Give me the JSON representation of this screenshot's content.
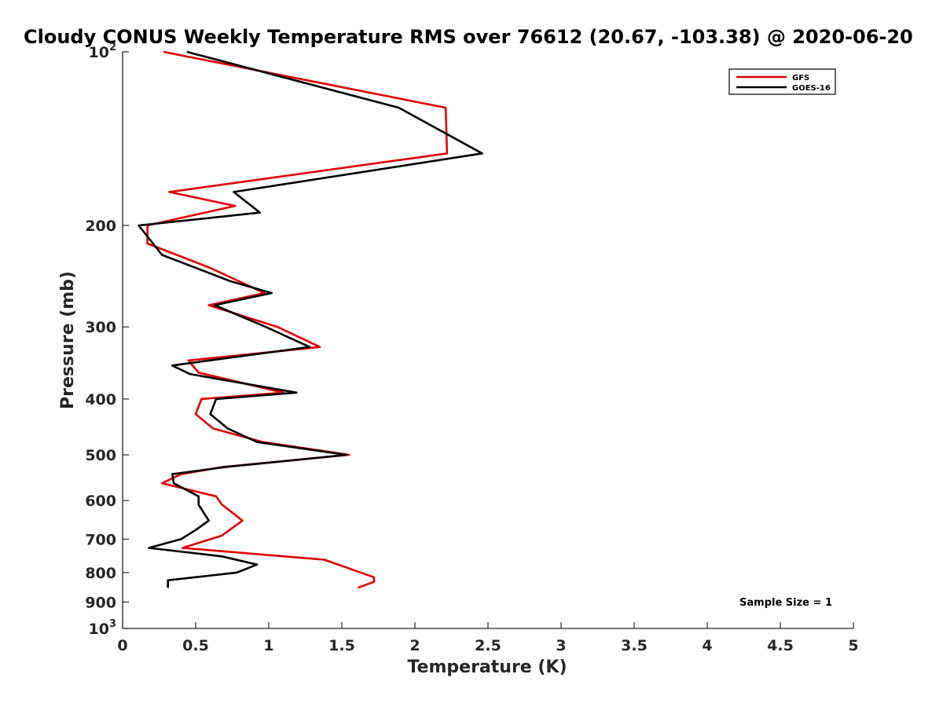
{
  "chart_data": {
    "type": "line",
    "title": "Cloudy CONUS Weekly Temperature RMS over 76612 (20.67, -103.38) @ 2020-06-20",
    "xlabel": "Temperature (K)",
    "ylabel": "Pressure (mb)",
    "xlim": [
      0,
      5
    ],
    "ylim": [
      100,
      1000
    ],
    "y_scale": "log",
    "y_reversed": true,
    "x_ticks": [
      0,
      0.5,
      1,
      1.5,
      2,
      2.5,
      3,
      3.5,
      4,
      4.5,
      5
    ],
    "x_tick_labels": [
      "0",
      "0.5",
      "1",
      "1.5",
      "2",
      "2.5",
      "3",
      "3.5",
      "4",
      "4.5",
      "5"
    ],
    "y_ticks": [
      {
        "value": 100,
        "base": "10",
        "exp": "2"
      },
      {
        "value": 200,
        "label": "200"
      },
      {
        "value": 300,
        "label": "300"
      },
      {
        "value": 400,
        "label": "400"
      },
      {
        "value": 500,
        "label": "500"
      },
      {
        "value": 600,
        "label": "600"
      },
      {
        "value": 700,
        "label": "700"
      },
      {
        "value": 800,
        "label": "800"
      },
      {
        "value": 900,
        "label": "900"
      },
      {
        "value": 1000,
        "base": "10",
        "exp": "3"
      }
    ],
    "grid": false,
    "legend_position": "top-right",
    "annotation": "Sample Size = 1",
    "series": [
      {
        "name": "GFS",
        "color": "#e00000",
        "points": [
          {
            "x": 0.28,
            "p": 100
          },
          {
            "x": 2.21,
            "p": 125
          },
          {
            "x": 2.22,
            "p": 150
          },
          {
            "x": 0.32,
            "p": 175
          },
          {
            "x": 0.77,
            "p": 185
          },
          {
            "x": 0.17,
            "p": 200
          },
          {
            "x": 0.17,
            "p": 215
          },
          {
            "x": 0.6,
            "p": 237
          },
          {
            "x": 0.97,
            "p": 262
          },
          {
            "x": 0.59,
            "p": 275
          },
          {
            "x": 1.06,
            "p": 300
          },
          {
            "x": 1.35,
            "p": 325
          },
          {
            "x": 0.45,
            "p": 343
          },
          {
            "x": 0.52,
            "p": 360
          },
          {
            "x": 1.1,
            "p": 390
          },
          {
            "x": 0.54,
            "p": 400
          },
          {
            "x": 0.5,
            "p": 425
          },
          {
            "x": 0.62,
            "p": 450
          },
          {
            "x": 0.96,
            "p": 475
          },
          {
            "x": 1.55,
            "p": 500
          },
          {
            "x": 0.68,
            "p": 525
          },
          {
            "x": 0.4,
            "p": 540
          },
          {
            "x": 0.27,
            "p": 560
          },
          {
            "x": 0.64,
            "p": 590
          },
          {
            "x": 0.68,
            "p": 610
          },
          {
            "x": 0.82,
            "p": 650
          },
          {
            "x": 0.68,
            "p": 690
          },
          {
            "x": 0.41,
            "p": 725
          },
          {
            "x": 1.38,
            "p": 760
          },
          {
            "x": 1.72,
            "p": 815
          },
          {
            "x": 1.72,
            "p": 830
          },
          {
            "x": 1.61,
            "p": 850
          }
        ]
      },
      {
        "name": "GOES-16",
        "color": "#000000",
        "points": [
          {
            "x": 0.44,
            "p": 100
          },
          {
            "x": 1.89,
            "p": 125
          },
          {
            "x": 2.46,
            "p": 150
          },
          {
            "x": 0.76,
            "p": 175
          },
          {
            "x": 0.94,
            "p": 190
          },
          {
            "x": 0.11,
            "p": 200
          },
          {
            "x": 0.27,
            "p": 225
          },
          {
            "x": 0.74,
            "p": 250
          },
          {
            "x": 1.02,
            "p": 262
          },
          {
            "x": 0.63,
            "p": 275
          },
          {
            "x": 0.98,
            "p": 300
          },
          {
            "x": 1.28,
            "p": 325
          },
          {
            "x": 0.34,
            "p": 350
          },
          {
            "x": 0.46,
            "p": 362
          },
          {
            "x": 1.19,
            "p": 390
          },
          {
            "x": 0.64,
            "p": 400
          },
          {
            "x": 0.6,
            "p": 425
          },
          {
            "x": 0.72,
            "p": 450
          },
          {
            "x": 0.92,
            "p": 475
          },
          {
            "x": 1.53,
            "p": 500
          },
          {
            "x": 0.7,
            "p": 525
          },
          {
            "x": 0.34,
            "p": 540
          },
          {
            "x": 0.35,
            "p": 560
          },
          {
            "x": 0.52,
            "p": 590
          },
          {
            "x": 0.52,
            "p": 610
          },
          {
            "x": 0.59,
            "p": 650
          },
          {
            "x": 0.5,
            "p": 675
          },
          {
            "x": 0.4,
            "p": 700
          },
          {
            "x": 0.18,
            "p": 725
          },
          {
            "x": 0.68,
            "p": 750
          },
          {
            "x": 0.92,
            "p": 775
          },
          {
            "x": 0.78,
            "p": 800
          },
          {
            "x": 0.31,
            "p": 825
          },
          {
            "x": 0.31,
            "p": 850
          }
        ]
      }
    ]
  }
}
